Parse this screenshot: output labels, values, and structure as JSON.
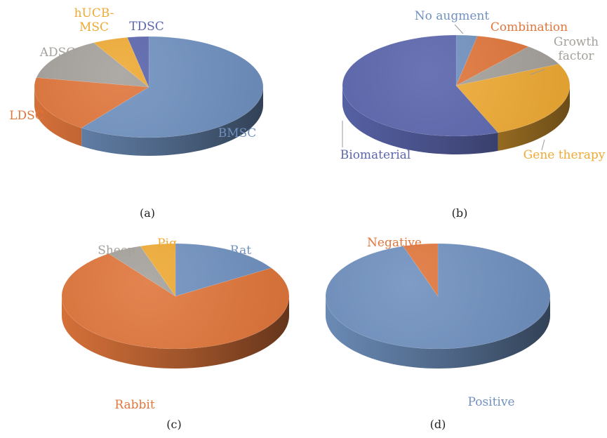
{
  "colors": {
    "blue": "#7091bf",
    "orange": "#e0763c",
    "gray": "#a5a19b",
    "gold": "#eeaa35",
    "navy": "#5b66ad"
  },
  "chart_data": [
    {
      "panel": "(a)",
      "type": "pie",
      "style": "3d",
      "categories": [
        "BMSC",
        "LDSC",
        "ADSC",
        "hUCB-MSC",
        "TDSC"
      ],
      "values": [
        60,
        18,
        14,
        5,
        3
      ],
      "label_colors": [
        "blue",
        "orange",
        "gray",
        "gold",
        "navy"
      ],
      "label_lines": [
        [
          "BMSC"
        ],
        [
          "LDSC"
        ],
        [
          "ADSC"
        ],
        [
          "hUCB-",
          "MSC"
        ],
        [
          "TDSC"
        ]
      ]
    },
    {
      "panel": "(b)",
      "type": "pie",
      "style": "3d",
      "categories": [
        "No augment",
        "Combination",
        "Growth factor",
        "Gene therapy",
        "Biomaterial"
      ],
      "values": [
        3,
        8,
        7,
        26,
        56
      ],
      "label_colors": [
        "blue",
        "orange",
        "gray",
        "gold",
        "navy"
      ],
      "label_lines": [
        [
          "No augment"
        ],
        [
          "Combination"
        ],
        [
          "Growth",
          "factor"
        ],
        [
          "Gene therapy"
        ],
        [
          "Biomaterial"
        ]
      ]
    },
    {
      "panel": "(c)",
      "type": "pie",
      "style": "3d",
      "categories": [
        "Rat",
        "Rabbit",
        "Sheep",
        "Pig"
      ],
      "values": [
        16,
        74,
        5,
        5
      ],
      "label_colors": [
        "blue",
        "orange",
        "gray",
        "gold"
      ],
      "label_lines": [
        [
          "Rat"
        ],
        [
          "Rabbit"
        ],
        [
          "Sheep"
        ],
        [
          "Pig"
        ]
      ]
    },
    {
      "panel": "(d)",
      "type": "pie",
      "style": "3d",
      "categories": [
        "Positive",
        "Negative"
      ],
      "values": [
        95,
        5
      ],
      "label_colors": [
        "blue",
        "orange"
      ],
      "label_lines": [
        [
          "Positive"
        ],
        [
          "Negative"
        ]
      ]
    }
  ]
}
